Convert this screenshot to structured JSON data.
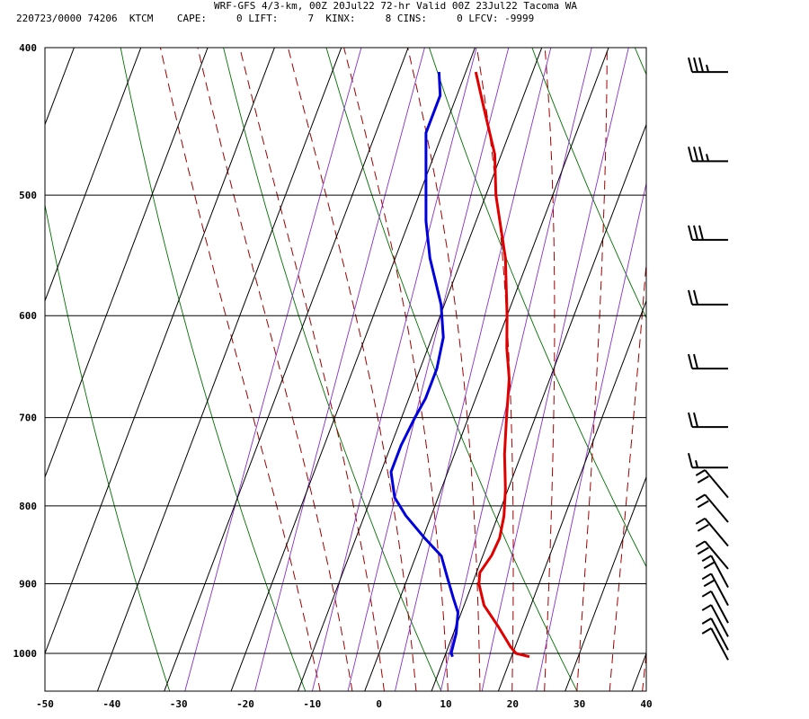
{
  "header": {
    "title": "WRF-GFS 4/3-km, 00Z 20Jul22 72-hr Valid 00Z 23Jul22 Tacoma WA",
    "run_info": "220723/0000 74206  KTCM",
    "cape": "CAPE:     0",
    "lift": "LIFT:     7",
    "kinx": "KINX:     8",
    "cins": "CINS:     0",
    "lfcv": "LFCV: -9999"
  },
  "chart_data": {
    "type": "line",
    "title": "",
    "xlabel": "",
    "ylabel": "",
    "x_axis": {
      "range": [
        -50,
        40
      ],
      "ticks": [
        -50,
        -40,
        -30,
        -20,
        -10,
        0,
        10,
        20,
        30,
        40
      ]
    },
    "y_axis": {
      "scale": "log-pressure (skew-T)",
      "range": [
        1040,
        400
      ],
      "ticks": [
        400,
        500,
        600,
        700,
        800,
        900,
        1000
      ]
    },
    "grid": true,
    "series": [
      {
        "name": "",
        "color": "#e00000",
        "points": [
          [
            1005,
            22.7
          ],
          [
            1000,
            20.5
          ],
          [
            990,
            19.3
          ],
          [
            960,
            16.3
          ],
          [
            930,
            13.0
          ],
          [
            900,
            11.0
          ],
          [
            885,
            10.5
          ],
          [
            862,
            11.3
          ],
          [
            840,
            11.5
          ],
          [
            812,
            10.9
          ],
          [
            780,
            9.6
          ],
          [
            740,
            7.5
          ],
          [
            700,
            5.7
          ],
          [
            660,
            3.9
          ],
          [
            630,
            1.8
          ],
          [
            600,
            0.0
          ],
          [
            550,
            -3.5
          ],
          [
            500,
            -8.5
          ],
          [
            470,
            -11.0
          ],
          [
            440,
            -15.0
          ],
          [
            415,
            -18.5
          ]
        ]
      },
      {
        "name": "",
        "color": "#0000dd",
        "points": [
          [
            1005,
            11.2
          ],
          [
            1000,
            10.8
          ],
          [
            970,
            10.4
          ],
          [
            940,
            9.5
          ],
          [
            920,
            8.0
          ],
          [
            890,
            5.8
          ],
          [
            863,
            3.8
          ],
          [
            840,
            0.3
          ],
          [
            812,
            -3.8
          ],
          [
            790,
            -6.5
          ],
          [
            760,
            -8.5
          ],
          [
            730,
            -8.5
          ],
          [
            700,
            -8.0
          ],
          [
            680,
            -7.5
          ],
          [
            650,
            -7.5
          ],
          [
            620,
            -8.3
          ],
          [
            590,
            -10.5
          ],
          [
            550,
            -14.8
          ],
          [
            520,
            -17.5
          ],
          [
            480,
            -20.5
          ],
          [
            455,
            -22.5
          ],
          [
            430,
            -22.5
          ],
          [
            415,
            -24.0
          ]
        ]
      }
    ],
    "wind_barbs": [
      {
        "p": 415,
        "speed_kt": 35
      },
      {
        "p": 475,
        "speed_kt": 35
      },
      {
        "p": 535,
        "speed_kt": 30
      },
      {
        "p": 590,
        "speed_kt": 20
      },
      {
        "p": 650,
        "speed_kt": 20
      },
      {
        "p": 710,
        "speed_kt": 20
      },
      {
        "p": 755,
        "speed_kt": 15
      },
      {
        "p": 790,
        "speed_kt": 10
      },
      {
        "p": 820,
        "speed_kt": 10
      },
      {
        "p": 850,
        "speed_kt": 10
      },
      {
        "p": 880,
        "speed_kt": 10
      },
      {
        "p": 905,
        "speed_kt": 10
      },
      {
        "p": 930,
        "speed_kt": 10
      },
      {
        "p": 955,
        "speed_kt": 5
      },
      {
        "p": 975,
        "speed_kt": 5
      },
      {
        "p": 995,
        "speed_kt": 5
      },
      {
        "p": 1010,
        "speed_kt": 5
      }
    ],
    "colors": {
      "dry_adiabat": "#007000",
      "moist_adiabat": "#a00000",
      "mixing_ratio": "#8830c8",
      "grid": "#000000"
    }
  }
}
